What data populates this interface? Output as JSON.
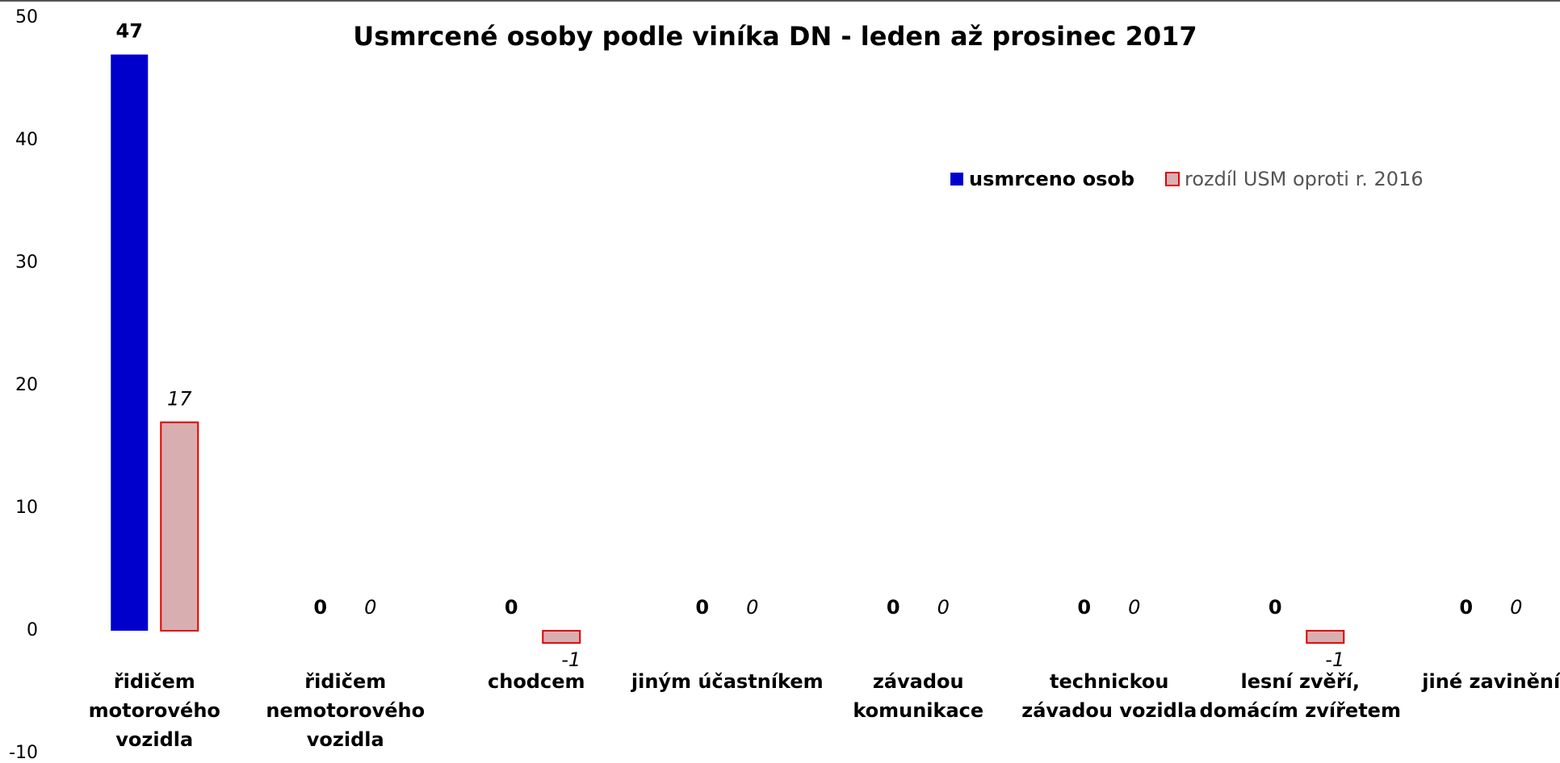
{
  "chart_data": {
    "type": "bar",
    "title": "Usmrcené osoby podle viníka DN - leden až prosinec 2017",
    "categories": [
      [
        "řidičem",
        "motorového",
        "vozidla"
      ],
      [
        "řidičem",
        "nemotorového",
        "vozidla"
      ],
      [
        "chodcem"
      ],
      [
        "jiným účastníkem"
      ],
      [
        "závadou",
        "komunikace"
      ],
      [
        "technickou",
        "závadou vozidla"
      ],
      [
        "lesní zvěří,",
        "domácím zvířetem"
      ],
      [
        "jiné zavinění"
      ]
    ],
    "series": [
      {
        "name": "usmrceno osob",
        "color": "#0000cc",
        "values": [
          47,
          0,
          0,
          0,
          0,
          0,
          0,
          0
        ]
      },
      {
        "name": "rozdíl USM oproti r. 2016",
        "color": "#d9aeb0",
        "values": [
          17,
          0,
          -1,
          0,
          0,
          0,
          -1,
          0
        ]
      }
    ],
    "ylim": [
      -10,
      50
    ],
    "yticks": [
      -10,
      0,
      10,
      20,
      30,
      40,
      50
    ],
    "grid": false,
    "legend": "top-right"
  }
}
